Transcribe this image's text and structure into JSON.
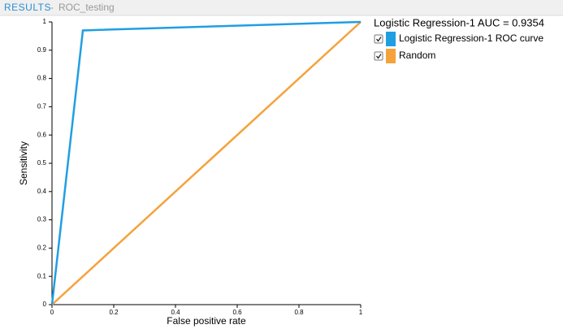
{
  "header": {
    "section": "RESULTS",
    "separator": "-",
    "name": "ROC_testing"
  },
  "chart_data": {
    "type": "line",
    "xlabel": "False positive rate",
    "ylabel": "Sensitivity",
    "legend_title": "Logistic Regression-1 AUC = 0.9354",
    "series": [
      {
        "name": "Logistic Regression-1 ROC curve",
        "color": "#1f9fe2",
        "x": [
          0,
          0.1,
          1
        ],
        "values": [
          0,
          0.97,
          1
        ]
      },
      {
        "name": "Random",
        "color": "#f5a23c",
        "x": [
          0,
          1
        ],
        "values": [
          0,
          1
        ]
      }
    ],
    "xlim": [
      0,
      1
    ],
    "xticks": [
      0,
      0.2,
      0.4,
      0.6,
      0.8,
      1
    ],
    "ylim": [
      0,
      1
    ],
    "yticks": [
      0,
      0.1,
      0.2,
      0.3,
      0.4,
      0.5,
      0.6,
      0.7,
      0.8,
      0.9,
      1
    ],
    "legend": "top-right",
    "grid": false
  }
}
